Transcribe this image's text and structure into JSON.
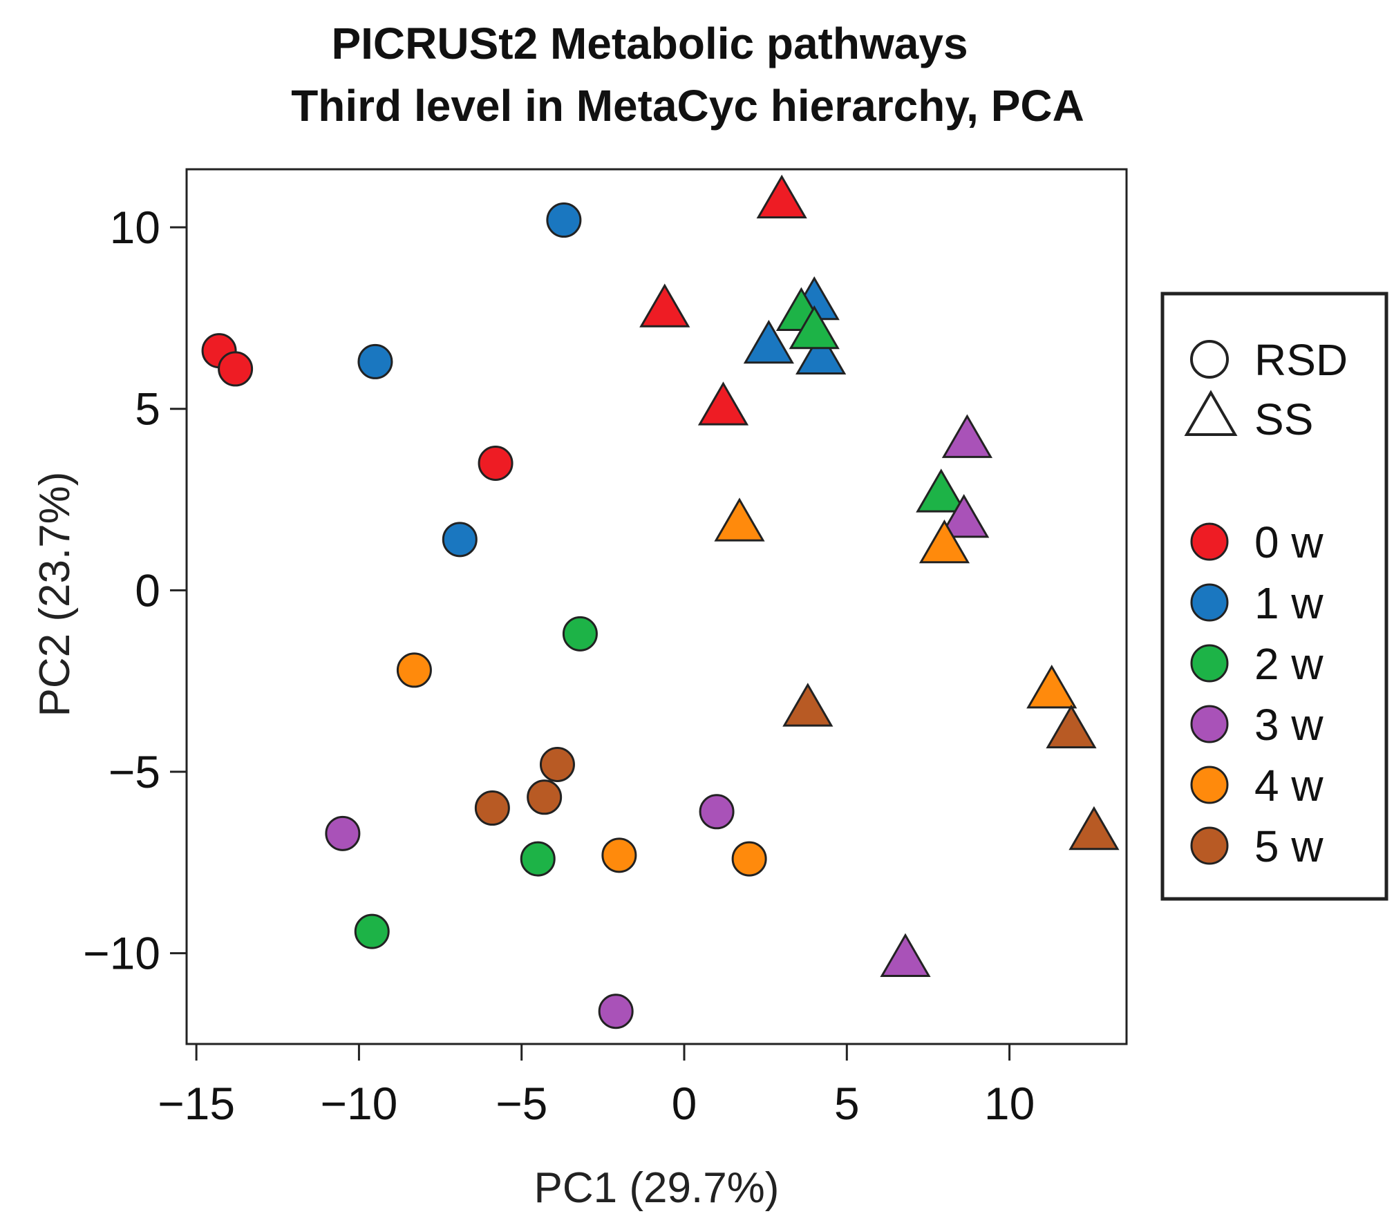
{
  "chart_data": {
    "type": "scatter",
    "title": [
      "PICRUSt2 Metabolic pathways",
      "Third level in MetaCyc hierarchy, PCA"
    ],
    "xlabel": "PC1 (29.7%)",
    "ylabel": "PC2 (23.7%)",
    "xlim": [
      -15.3,
      13.6
    ],
    "ylim": [
      -12.5,
      11.6
    ],
    "xticks": [
      -15,
      -10,
      -5,
      0,
      5,
      10
    ],
    "yticks": [
      -10,
      -5,
      0,
      5,
      10
    ],
    "xtick_labels": [
      "−15",
      "−10",
      "−5",
      "0",
      "5",
      "10"
    ],
    "ytick_labels": [
      "−10",
      "−5",
      "0",
      "5",
      "10"
    ],
    "shape_legend": [
      {
        "shape": "circle",
        "label": "RSD"
      },
      {
        "shape": "triangle",
        "label": "SS"
      }
    ],
    "color_legend": [
      {
        "group": "0w",
        "label": "0 w",
        "color": "#ee1c24"
      },
      {
        "group": "1w",
        "label": "1 w",
        "color": "#1a77c0"
      },
      {
        "group": "2w",
        "label": "2 w",
        "color": "#1db347"
      },
      {
        "group": "3w",
        "label": "3 w",
        "color": "#a952b8"
      },
      {
        "group": "4w",
        "label": "4 w",
        "color": "#ff8a0c"
      },
      {
        "group": "5w",
        "label": "5 w",
        "color": "#b85a24"
      }
    ],
    "points": [
      {
        "x": -14.3,
        "y": 6.6,
        "shape": "circle",
        "group": "0w"
      },
      {
        "x": -13.8,
        "y": 6.1,
        "shape": "circle",
        "group": "0w"
      },
      {
        "x": -5.8,
        "y": 3.5,
        "shape": "circle",
        "group": "0w"
      },
      {
        "x": -3.7,
        "y": 10.2,
        "shape": "circle",
        "group": "1w"
      },
      {
        "x": -9.5,
        "y": 6.3,
        "shape": "circle",
        "group": "1w"
      },
      {
        "x": -6.9,
        "y": 1.4,
        "shape": "circle",
        "group": "1w"
      },
      {
        "x": -3.2,
        "y": -1.2,
        "shape": "circle",
        "group": "2w"
      },
      {
        "x": -4.5,
        "y": -7.4,
        "shape": "circle",
        "group": "2w"
      },
      {
        "x": -9.6,
        "y": -9.4,
        "shape": "circle",
        "group": "2w"
      },
      {
        "x": -10.5,
        "y": -6.7,
        "shape": "circle",
        "group": "3w"
      },
      {
        "x": 1.0,
        "y": -6.1,
        "shape": "circle",
        "group": "3w"
      },
      {
        "x": -2.1,
        "y": -11.6,
        "shape": "circle",
        "group": "3w"
      },
      {
        "x": -8.3,
        "y": -2.2,
        "shape": "circle",
        "group": "4w"
      },
      {
        "x": -2.0,
        "y": -7.3,
        "shape": "circle",
        "group": "4w"
      },
      {
        "x": 2.0,
        "y": -7.4,
        "shape": "circle",
        "group": "4w"
      },
      {
        "x": -3.9,
        "y": -4.8,
        "shape": "circle",
        "group": "5w"
      },
      {
        "x": -4.3,
        "y": -5.7,
        "shape": "circle",
        "group": "5w"
      },
      {
        "x": -5.9,
        "y": -6.0,
        "shape": "circle",
        "group": "5w"
      },
      {
        "x": 3.0,
        "y": 10.7,
        "shape": "triangle",
        "group": "0w"
      },
      {
        "x": -0.6,
        "y": 7.7,
        "shape": "triangle",
        "group": "0w"
      },
      {
        "x": 1.2,
        "y": 5.0,
        "shape": "triangle",
        "group": "0w"
      },
      {
        "x": 4.0,
        "y": 7.9,
        "shape": "triangle",
        "group": "1w"
      },
      {
        "x": 2.6,
        "y": 6.7,
        "shape": "triangle",
        "group": "1w"
      },
      {
        "x": 4.2,
        "y": 6.4,
        "shape": "triangle",
        "group": "1w"
      },
      {
        "x": 3.6,
        "y": 7.6,
        "shape": "triangle",
        "group": "2w"
      },
      {
        "x": 4.0,
        "y": 7.1,
        "shape": "triangle",
        "group": "2w"
      },
      {
        "x": 7.9,
        "y": 2.6,
        "shape": "triangle",
        "group": "2w"
      },
      {
        "x": 8.7,
        "y": 4.1,
        "shape": "triangle",
        "group": "3w"
      },
      {
        "x": 8.6,
        "y": 1.9,
        "shape": "triangle",
        "group": "3w"
      },
      {
        "x": 6.8,
        "y": -10.2,
        "shape": "triangle",
        "group": "3w"
      },
      {
        "x": 1.7,
        "y": 1.8,
        "shape": "triangle",
        "group": "4w"
      },
      {
        "x": 8.0,
        "y": 1.2,
        "shape": "triangle",
        "group": "4w"
      },
      {
        "x": 11.3,
        "y": -2.8,
        "shape": "triangle",
        "group": "4w"
      },
      {
        "x": 3.8,
        "y": -3.3,
        "shape": "triangle",
        "group": "5w"
      },
      {
        "x": 11.9,
        "y": -3.9,
        "shape": "triangle",
        "group": "5w"
      },
      {
        "x": 12.6,
        "y": -6.7,
        "shape": "triangle",
        "group": "5w"
      }
    ]
  }
}
